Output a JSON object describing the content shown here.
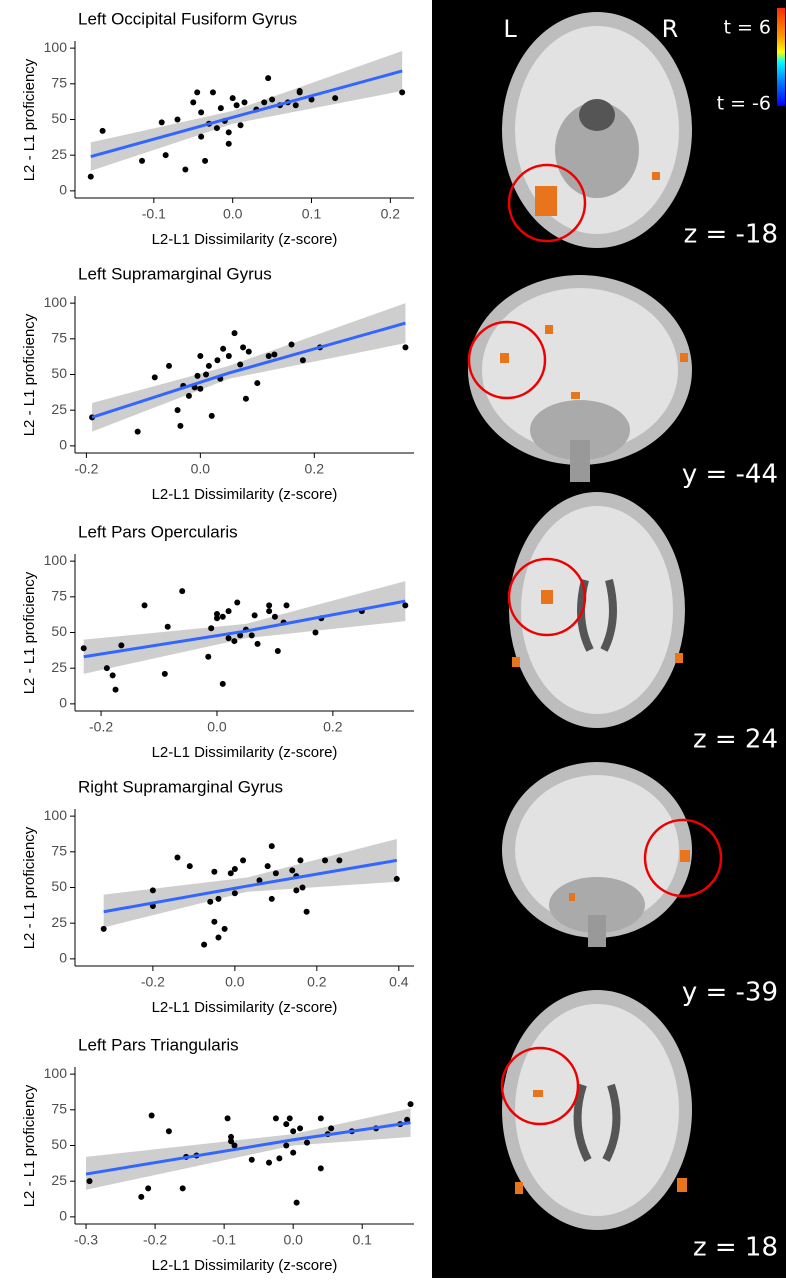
{
  "chart_data": [
    {
      "type": "scatter",
      "title": "Left Occipital Fusiform Gyrus",
      "x_label": "L2-L1 Dissimilarity (z-score)",
      "y_label": "L2 - L1 proficiency",
      "x": [
        -0.18,
        -0.165,
        -0.115,
        -0.09,
        -0.085,
        -0.07,
        -0.06,
        -0.05,
        -0.045,
        -0.04,
        -0.04,
        -0.035,
        -0.03,
        -0.025,
        -0.02,
        -0.015,
        -0.01,
        -0.005,
        -0.005,
        0,
        0.005,
        0.01,
        0.015,
        0.03,
        0.04,
        0.045,
        0.05,
        0.06,
        0.07,
        0.08,
        0.085,
        0.085,
        0.1,
        0.13,
        0.215
      ],
      "values": [
        10,
        42,
        21,
        48,
        25,
        50,
        15,
        62,
        69,
        38,
        55,
        21,
        47,
        69,
        44,
        58,
        49,
        41,
        33,
        65,
        60,
        46,
        62,
        57,
        62,
        79,
        64,
        60,
        62,
        60,
        69,
        70,
        64,
        65,
        69
      ],
      "color": "#000000",
      "fit": {
        "x": [
          -0.18,
          0,
          0.215
        ],
        "values": [
          24,
          51.5,
          84
        ],
        "lower": [
          14,
          47,
          70
        ],
        "upper": [
          34,
          56,
          98
        ],
        "color": "#3366ff",
        "band_color": "#bdbdbd"
      },
      "xlim": [
        -0.2,
        0.23
      ],
      "ylim": [
        -5,
        105
      ],
      "xticks": [
        -0.1,
        {
          "value": 0,
          "label": "0.0"
        },
        0.1,
        0.2
      ],
      "yticks": [
        0,
        25,
        50,
        75,
        100
      ],
      "grid": false
    },
    {
      "type": "scatter",
      "title": "Left Supramarginal Gyrus",
      "x_label": "L2-L1 Dissimilarity (z-score)",
      "y_label": "L2 - L1 proficiency",
      "x": [
        -0.19,
        -0.11,
        -0.08,
        -0.055,
        -0.04,
        -0.035,
        -0.03,
        -0.02,
        -0.01,
        -0.005,
        0,
        0.01,
        0.015,
        0.02,
        0.03,
        0.035,
        0.04,
        0.05,
        0.06,
        0.07,
        0.075,
        0.08,
        0.085,
        0.1,
        0.12,
        0.13,
        0.16,
        0.18,
        0.21,
        0.36,
        0
      ],
      "values": [
        20,
        10,
        48,
        56,
        25,
        14,
        42,
        35,
        41,
        49,
        63,
        50,
        56,
        21,
        60,
        47,
        68,
        63,
        79,
        57,
        69,
        33,
        66,
        44,
        63,
        64,
        71,
        60,
        69,
        69,
        40
      ],
      "color": "#000000",
      "fit": {
        "x": [
          -0.19,
          0.05,
          0.36
        ],
        "values": [
          20,
          51,
          86
        ],
        "lower": [
          10,
          47,
          72
        ],
        "upper": [
          30,
          56,
          100
        ],
        "color": "#3366ff",
        "band_color": "#bdbdbd"
      },
      "xlim": [
        -0.22,
        0.375
      ],
      "ylim": [
        -5,
        105
      ],
      "xticks": [
        -0.2,
        {
          "value": 0,
          "label": "0.0"
        },
        0.2
      ],
      "yticks": [
        0,
        25,
        50,
        75,
        100
      ],
      "grid": false
    },
    {
      "type": "scatter",
      "title": "Left Pars Opercularis",
      "x_label": "L2-L1 Dissimilarity (z-score)",
      "y_label": "L2 - L1 proficiency",
      "x": [
        -0.23,
        -0.19,
        -0.18,
        -0.175,
        -0.165,
        -0.125,
        -0.09,
        -0.085,
        -0.06,
        -0.015,
        -0.01,
        0,
        0,
        0.01,
        0.01,
        0.02,
        0.02,
        0.03,
        0.035,
        0.04,
        0.05,
        0.06,
        0.065,
        0.07,
        0.09,
        0.09,
        0.1,
        0.105,
        0.115,
        0.12,
        0.17,
        0.18,
        0.25,
        0.325
      ],
      "values": [
        39,
        25,
        20,
        10,
        41,
        69,
        21,
        54,
        79,
        33,
        53,
        60,
        63,
        61,
        14,
        65,
        46,
        44,
        71,
        48,
        52,
        48,
        62,
        42,
        65,
        69,
        61,
        37,
        57,
        69,
        50,
        60,
        65,
        69
      ],
      "color": "#000000",
      "fit": {
        "x": [
          -0.23,
          0.05,
          0.325
        ],
        "values": [
          33,
          51,
          72
        ],
        "lower": [
          21,
          46,
          58
        ],
        "upper": [
          45,
          56,
          86
        ],
        "color": "#3366ff",
        "band_color": "#bdbdbd"
      },
      "xlim": [
        -0.245,
        0.34
      ],
      "ylim": [
        -5,
        105
      ],
      "xticks": [
        -0.2,
        {
          "value": 0,
          "label": "0.0"
        },
        0.2
      ],
      "yticks": [
        0,
        25,
        50,
        75,
        100
      ],
      "grid": false
    },
    {
      "type": "scatter",
      "title": "Right Supramarginal Gyrus",
      "x_label": "L2-L1 Dissimilarity (z-score)",
      "y_label": "L2 - L1 proficiency",
      "x": [
        -0.32,
        -0.2,
        -0.2,
        -0.14,
        -0.11,
        -0.075,
        -0.06,
        -0.05,
        -0.04,
        -0.04,
        -0.025,
        -0.01,
        0,
        0,
        0.02,
        0.06,
        0.08,
        0.09,
        0.09,
        0.1,
        0.14,
        0.15,
        0.16,
        0.165,
        0.175,
        0.22,
        0.255,
        0.395,
        0.15,
        -0.05
      ],
      "values": [
        21,
        37,
        48,
        71,
        65,
        10,
        40,
        26,
        42,
        15,
        21,
        60,
        46,
        63,
        69,
        55,
        65,
        79,
        42,
        60,
        62,
        48,
        69,
        50,
        33,
        69,
        69,
        56,
        58,
        61
      ],
      "color": "#000000",
      "fit": {
        "x": [
          -0.32,
          0.03,
          0.395
        ],
        "values": [
          33,
          51,
          69
        ],
        "lower": [
          22,
          47,
          54
        ],
        "upper": [
          45,
          57,
          84
        ],
        "color": "#3366ff",
        "band_color": "#bdbdbd"
      },
      "xlim": [
        -0.39,
        0.437
      ],
      "ylim": [
        -5,
        105
      ],
      "xticks": [
        -0.2,
        {
          "value": 0,
          "label": "0.0"
        },
        0.2,
        0.4
      ],
      "yticks": [
        0,
        25,
        50,
        75,
        100
      ],
      "grid": false
    },
    {
      "type": "scatter",
      "title": "Left Pars Triangularis",
      "x_label": "L2-L1 Dissimilarity (z-score)",
      "y_label": "L2 - L1 proficiency",
      "x": [
        -0.295,
        -0.22,
        -0.21,
        -0.205,
        -0.18,
        -0.16,
        -0.155,
        -0.14,
        -0.095,
        -0.09,
        -0.09,
        -0.085,
        -0.06,
        -0.035,
        -0.025,
        -0.02,
        -0.01,
        -0.005,
        0,
        0,
        0.005,
        0.01,
        0.02,
        0.04,
        0.04,
        0.05,
        0.055,
        0.085,
        0.12,
        0.155,
        0.165,
        0.17,
        -0.01
      ],
      "values": [
        25,
        14,
        20,
        71,
        60,
        20,
        42,
        43,
        69,
        56,
        53,
        50,
        40,
        38,
        69,
        41,
        65,
        69,
        60,
        45,
        10,
        62,
        52,
        34,
        69,
        58,
        62,
        60,
        62,
        65,
        68,
        79,
        50
      ],
      "color": "#000000",
      "fit": {
        "x": [
          -0.3,
          0,
          0.17
        ],
        "values": [
          30,
          54,
          66
        ],
        "lower": [
          19,
          50,
          56
        ],
        "upper": [
          42,
          58,
          76
        ],
        "color": "#3366ff",
        "band_color": "#bdbdbd"
      },
      "xlim": [
        -0.316,
        0.175
      ],
      "ylim": [
        -5,
        105
      ],
      "xticks": [
        -0.3,
        -0.2,
        -0.1,
        {
          "value": 0,
          "label": "0.0"
        },
        0.1
      ],
      "yticks": [
        0,
        25,
        50,
        75,
        100
      ],
      "grid": false
    }
  ],
  "orientation": {
    "left": "L",
    "right": "R"
  },
  "colorbar": {
    "max_label": "t = 6",
    "min_label": "t = -6"
  },
  "brain_panels": [
    {
      "label": "z = -18"
    },
    {
      "label": "y = -44"
    },
    {
      "label": "z = 24"
    },
    {
      "label": "y = -39"
    },
    {
      "label": "z = 18"
    }
  ]
}
